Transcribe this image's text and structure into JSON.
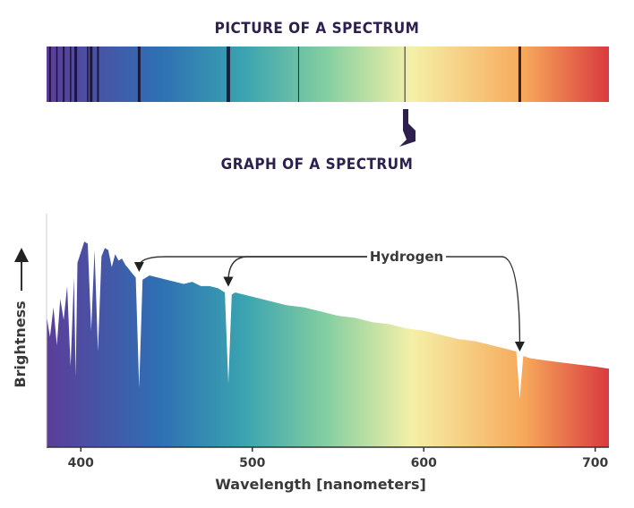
{
  "headers": {
    "picture_title": "PICTURE OF A SPECTRUM",
    "graph_title": "GRAPH OF A SPECTRUM"
  },
  "chart_data": {
    "type": "area",
    "title": "",
    "xlabel": "Wavelength [nanometers]",
    "ylabel": "Brightness",
    "xlim": [
      380,
      708
    ],
    "xticks": [
      400,
      500,
      600,
      700
    ],
    "ylim": [
      0,
      1
    ],
    "grid": false,
    "legend": "none",
    "annotations": [
      {
        "text": "Hydrogen",
        "points_to_nm": [
          434,
          486,
          656
        ]
      }
    ],
    "series": [
      {
        "values_x": [
          380,
          382,
          384,
          386,
          388,
          390,
          392,
          394,
          396,
          397,
          398,
          400,
          402,
          404,
          406,
          408,
          410,
          412,
          414,
          416,
          418,
          420,
          422,
          424,
          426,
          428,
          430,
          432,
          434,
          436,
          438,
          440,
          445,
          450,
          455,
          460,
          465,
          470,
          475,
          480,
          484,
          486,
          488,
          490,
          495,
          500,
          510,
          520,
          530,
          540,
          550,
          560,
          570,
          580,
          590,
          600,
          610,
          620,
          630,
          640,
          645,
          650,
          654,
          656,
          658,
          662,
          670,
          680,
          690,
          700,
          708
        ],
        "values_y": [
          0.62,
          0.52,
          0.66,
          0.48,
          0.7,
          0.6,
          0.76,
          0.38,
          0.8,
          0.33,
          0.87,
          0.92,
          0.97,
          0.96,
          0.55,
          0.93,
          0.45,
          0.9,
          0.94,
          0.93,
          0.85,
          0.91,
          0.88,
          0.89,
          0.86,
          0.84,
          0.82,
          0.8,
          0.28,
          0.79,
          0.8,
          0.81,
          0.8,
          0.79,
          0.78,
          0.77,
          0.78,
          0.76,
          0.76,
          0.75,
          0.73,
          0.3,
          0.72,
          0.73,
          0.72,
          0.71,
          0.69,
          0.67,
          0.66,
          0.64,
          0.62,
          0.61,
          0.59,
          0.58,
          0.56,
          0.55,
          0.53,
          0.51,
          0.5,
          0.48,
          0.47,
          0.46,
          0.45,
          0.23,
          0.43,
          0.42,
          0.41,
          0.4,
          0.39,
          0.38,
          0.37
        ]
      }
    ],
    "colors": {
      "violet": "#5b3d99",
      "blue": "#2f6fb3",
      "teal": "#3aa3b0",
      "green": "#86cfa1",
      "yellow": "#f5f0a8",
      "orange": "#f6a85a",
      "red": "#d93a3f",
      "header": "#2d1f4e",
      "axis": "#333333"
    }
  }
}
